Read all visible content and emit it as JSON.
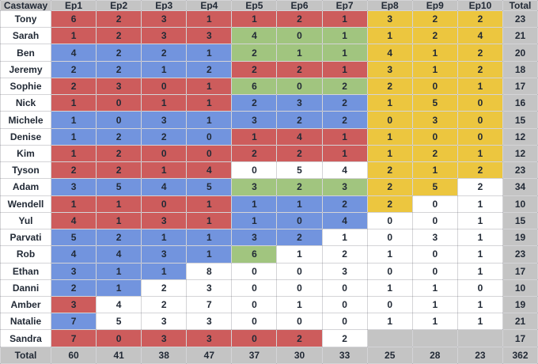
{
  "colors": {
    "red": "#cd5c5c",
    "blue": "#7294de",
    "green": "#a1c57f",
    "yellow": "#ecc63f",
    "white": "#ffffff",
    "empty": "#c4c4c4",
    "gray": "#c4c4c4",
    "text": "#222a36"
  },
  "chart_data": {
    "type": "table",
    "title": "",
    "columns": [
      "Castaway",
      "Ep1",
      "Ep2",
      "Ep3",
      "Ep4",
      "Ep5",
      "Ep6",
      "Ep7",
      "Ep8",
      "Ep9",
      "Ep10",
      "Total"
    ],
    "rows": [
      {
        "castaway": "Tony",
        "episodes": [
          6,
          2,
          3,
          1,
          1,
          2,
          1,
          3,
          2,
          2
        ],
        "total": 23,
        "cell_colors": [
          "red",
          "red",
          "red",
          "red",
          "red",
          "red",
          "red",
          "yellow",
          "yellow",
          "yellow"
        ]
      },
      {
        "castaway": "Sarah",
        "episodes": [
          1,
          2,
          3,
          3,
          4,
          0,
          1,
          1,
          2,
          4
        ],
        "total": 21,
        "cell_colors": [
          "red",
          "red",
          "red",
          "red",
          "green",
          "green",
          "green",
          "yellow",
          "yellow",
          "yellow"
        ]
      },
      {
        "castaway": "Ben",
        "episodes": [
          4,
          2,
          2,
          1,
          2,
          1,
          1,
          4,
          1,
          2
        ],
        "total": 20,
        "cell_colors": [
          "blue",
          "blue",
          "blue",
          "blue",
          "green",
          "green",
          "green",
          "yellow",
          "yellow",
          "yellow"
        ]
      },
      {
        "castaway": "Jeremy",
        "episodes": [
          2,
          2,
          1,
          2,
          2,
          2,
          1,
          3,
          1,
          2
        ],
        "total": 18,
        "cell_colors": [
          "blue",
          "blue",
          "blue",
          "blue",
          "red",
          "red",
          "red",
          "yellow",
          "yellow",
          "yellow"
        ]
      },
      {
        "castaway": "Sophie",
        "episodes": [
          2,
          3,
          0,
          1,
          6,
          0,
          2,
          2,
          0,
          1
        ],
        "total": 17,
        "cell_colors": [
          "red",
          "red",
          "red",
          "red",
          "green",
          "green",
          "green",
          "yellow",
          "yellow",
          "yellow"
        ]
      },
      {
        "castaway": "Nick",
        "episodes": [
          1,
          0,
          1,
          1,
          2,
          3,
          2,
          1,
          5,
          0
        ],
        "total": 16,
        "cell_colors": [
          "red",
          "red",
          "red",
          "red",
          "blue",
          "blue",
          "blue",
          "yellow",
          "yellow",
          "yellow"
        ]
      },
      {
        "castaway": "Michele",
        "episodes": [
          1,
          0,
          3,
          1,
          3,
          2,
          2,
          0,
          3,
          0
        ],
        "total": 15,
        "cell_colors": [
          "blue",
          "blue",
          "blue",
          "blue",
          "blue",
          "blue",
          "blue",
          "yellow",
          "yellow",
          "yellow"
        ]
      },
      {
        "castaway": "Denise",
        "episodes": [
          1,
          2,
          2,
          0,
          1,
          4,
          1,
          1,
          0,
          0
        ],
        "total": 12,
        "cell_colors": [
          "blue",
          "blue",
          "blue",
          "blue",
          "red",
          "red",
          "red",
          "yellow",
          "yellow",
          "yellow"
        ]
      },
      {
        "castaway": "Kim",
        "episodes": [
          1,
          2,
          0,
          0,
          2,
          2,
          1,
          1,
          2,
          1
        ],
        "total": 12,
        "cell_colors": [
          "red",
          "red",
          "red",
          "red",
          "red",
          "red",
          "red",
          "yellow",
          "yellow",
          "yellow"
        ]
      },
      {
        "castaway": "Tyson",
        "episodes": [
          2,
          2,
          1,
          4,
          0,
          5,
          4,
          2,
          1,
          2
        ],
        "total": 23,
        "cell_colors": [
          "red",
          "red",
          "red",
          "red",
          "white",
          "white",
          "white",
          "yellow",
          "yellow",
          "yellow"
        ]
      },
      {
        "castaway": "Adam",
        "episodes": [
          3,
          5,
          4,
          5,
          3,
          2,
          3,
          2,
          5,
          2
        ],
        "total": 34,
        "cell_colors": [
          "blue",
          "blue",
          "blue",
          "blue",
          "green",
          "green",
          "green",
          "yellow",
          "yellow",
          "white"
        ]
      },
      {
        "castaway": "Wendell",
        "episodes": [
          1,
          1,
          0,
          1,
          1,
          1,
          2,
          2,
          0,
          1
        ],
        "total": 10,
        "cell_colors": [
          "red",
          "red",
          "red",
          "red",
          "blue",
          "blue",
          "blue",
          "yellow",
          "white",
          "white"
        ]
      },
      {
        "castaway": "Yul",
        "episodes": [
          4,
          1,
          3,
          1,
          1,
          0,
          4,
          0,
          0,
          1
        ],
        "total": 15,
        "cell_colors": [
          "red",
          "red",
          "red",
          "red",
          "blue",
          "blue",
          "blue",
          "white",
          "white",
          "white"
        ]
      },
      {
        "castaway": "Parvati",
        "episodes": [
          5,
          2,
          1,
          1,
          3,
          2,
          1,
          0,
          3,
          1
        ],
        "total": 19,
        "cell_colors": [
          "blue",
          "blue",
          "blue",
          "blue",
          "blue",
          "blue",
          "white",
          "white",
          "white",
          "white"
        ]
      },
      {
        "castaway": "Rob",
        "episodes": [
          4,
          4,
          3,
          1,
          6,
          1,
          2,
          1,
          0,
          1
        ],
        "total": 23,
        "cell_colors": [
          "blue",
          "blue",
          "blue",
          "blue",
          "green",
          "white",
          "white",
          "white",
          "white",
          "white"
        ]
      },
      {
        "castaway": "Ethan",
        "episodes": [
          3,
          1,
          1,
          8,
          0,
          0,
          3,
          0,
          0,
          1
        ],
        "total": 17,
        "cell_colors": [
          "blue",
          "blue",
          "blue",
          "white",
          "white",
          "white",
          "white",
          "white",
          "white",
          "white"
        ]
      },
      {
        "castaway": "Danni",
        "episodes": [
          2,
          1,
          2,
          3,
          0,
          0,
          0,
          1,
          1,
          0
        ],
        "total": 10,
        "cell_colors": [
          "blue",
          "blue",
          "white",
          "white",
          "white",
          "white",
          "white",
          "white",
          "white",
          "white"
        ]
      },
      {
        "castaway": "Amber",
        "episodes": [
          3,
          4,
          2,
          7,
          0,
          1,
          0,
          0,
          1,
          1
        ],
        "total": 19,
        "cell_colors": [
          "red",
          "white",
          "white",
          "white",
          "white",
          "white",
          "white",
          "white",
          "white",
          "white"
        ]
      },
      {
        "castaway": "Natalie",
        "episodes": [
          7,
          5,
          3,
          3,
          0,
          0,
          0,
          1,
          1,
          1
        ],
        "total": 21,
        "cell_colors": [
          "blue",
          "white",
          "white",
          "white",
          "white",
          "white",
          "white",
          "white",
          "white",
          "white"
        ]
      },
      {
        "castaway": "Sandra",
        "episodes": [
          7,
          0,
          3,
          3,
          0,
          2,
          2,
          null,
          null,
          null
        ],
        "total": 17,
        "cell_colors": [
          "red",
          "red",
          "red",
          "red",
          "red",
          "red",
          "white",
          "empty",
          "empty",
          "empty"
        ]
      }
    ],
    "total_row": {
      "label": "Total",
      "episodes": [
        60,
        41,
        38,
        47,
        37,
        30,
        33,
        25,
        28,
        23
      ],
      "total": 362
    }
  }
}
